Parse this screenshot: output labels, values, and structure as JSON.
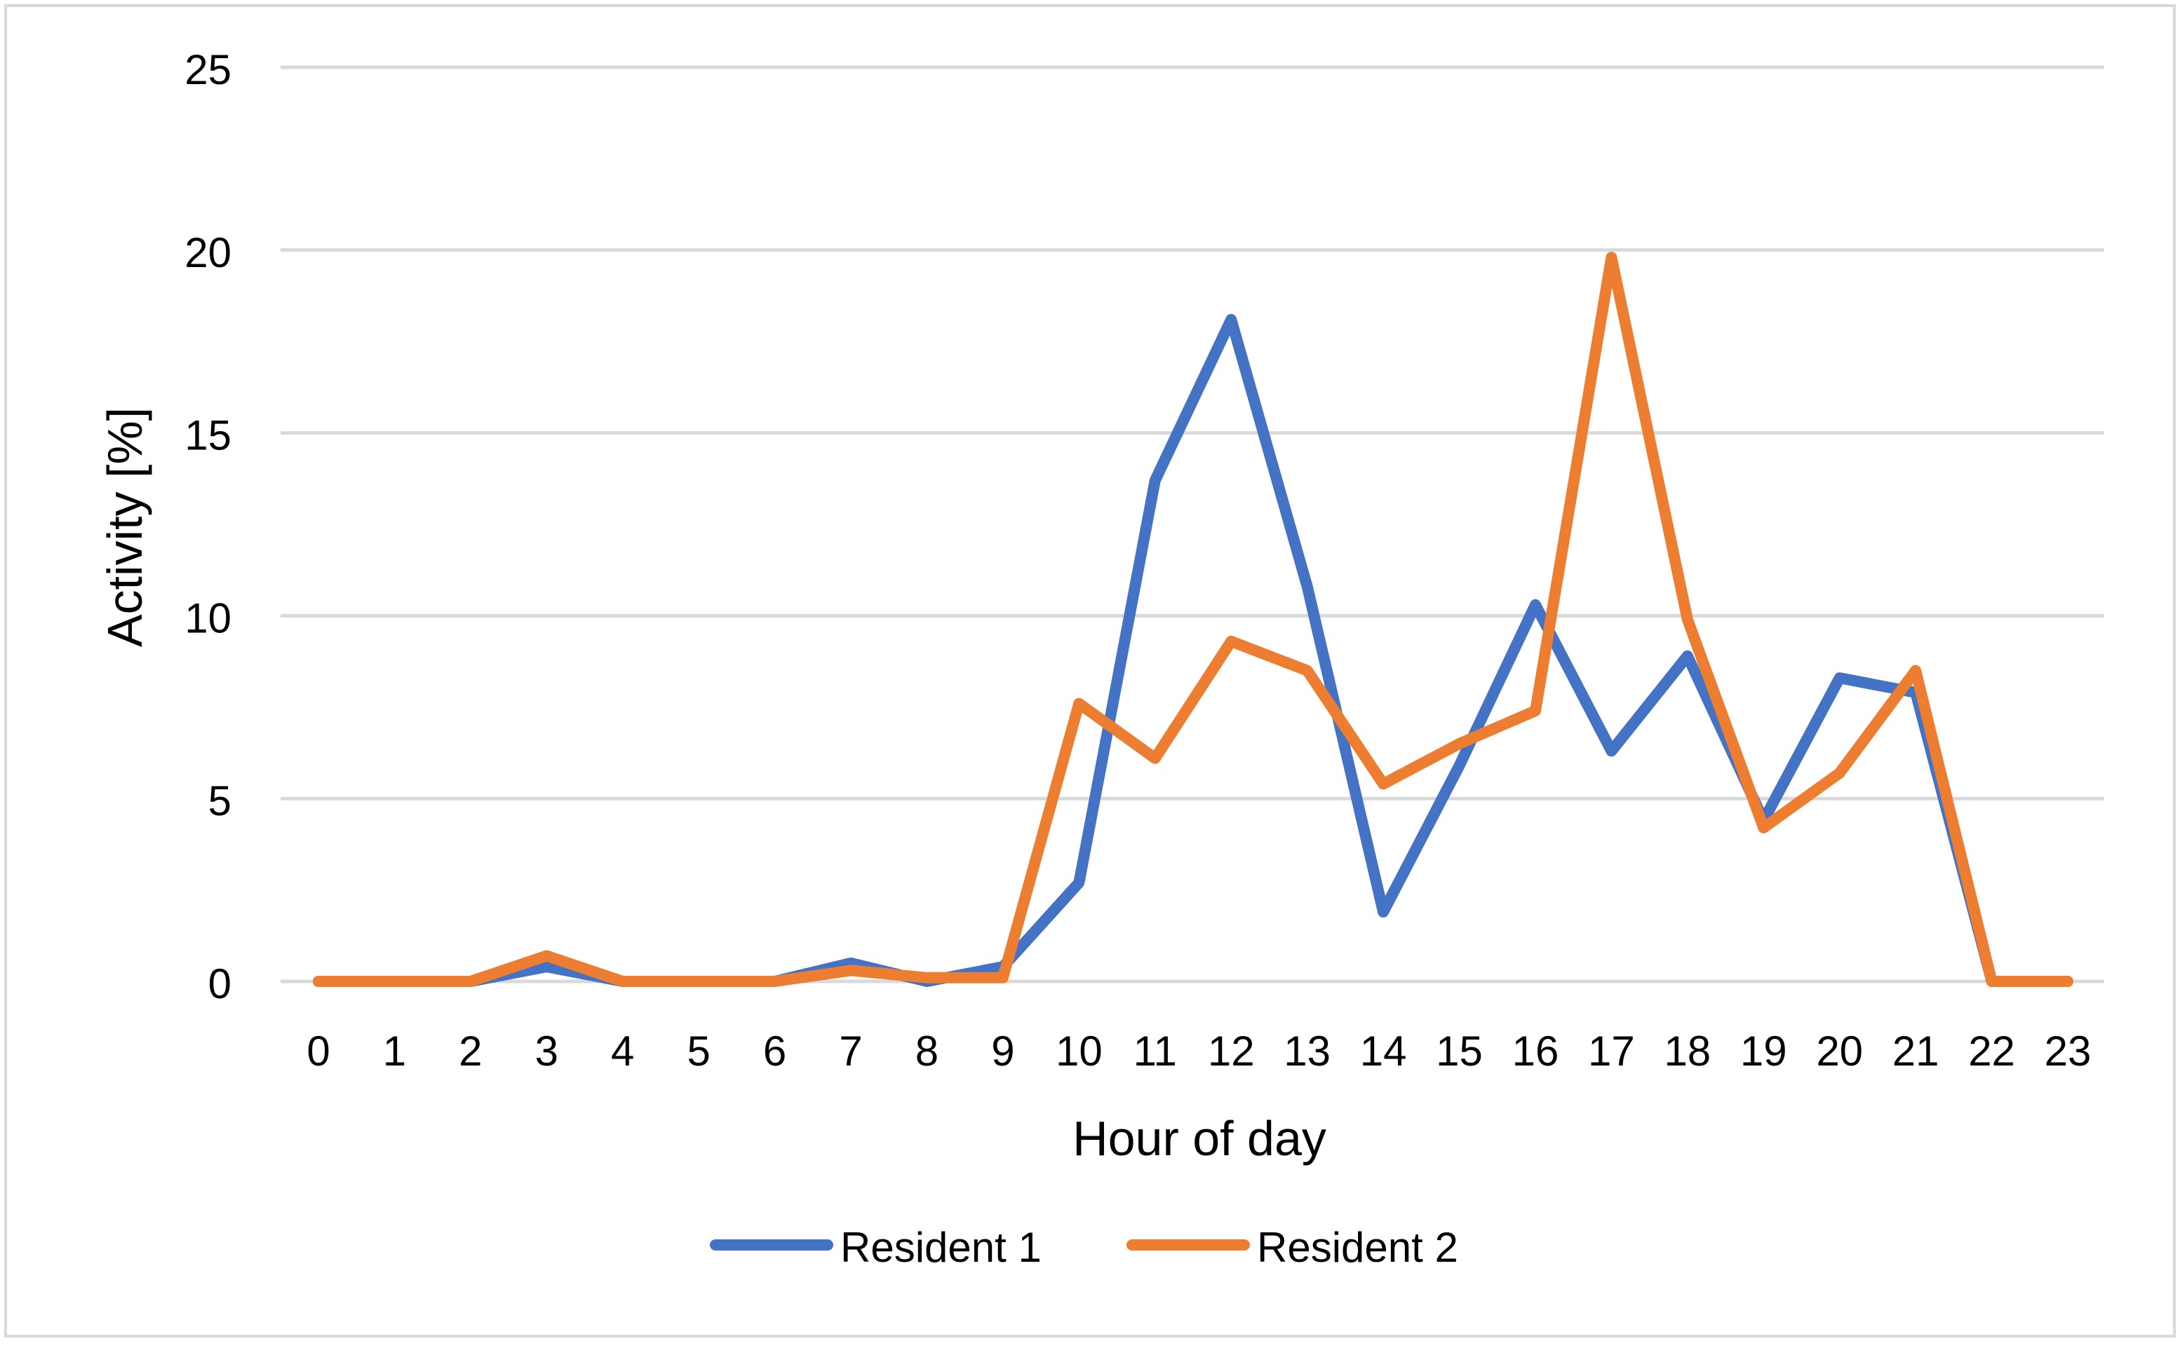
{
  "chart_data": {
    "type": "line",
    "title": "",
    "xlabel": "Hour of day",
    "ylabel": "Activity [%]",
    "categories": [
      "0",
      "1",
      "2",
      "3",
      "4",
      "5",
      "6",
      "7",
      "8",
      "9",
      "10",
      "11",
      "12",
      "13",
      "14",
      "15",
      "16",
      "17",
      "18",
      "19",
      "20",
      "21",
      "22",
      "23"
    ],
    "ylim": [
      0,
      25
    ],
    "yticks": [
      "0",
      "5",
      "10",
      "15",
      "20",
      "25"
    ],
    "grid": "horizontal",
    "legend_position": "bottom",
    "series": [
      {
        "name": "Resident 1",
        "color": "#4472C4",
        "values": [
          0,
          0,
          0,
          0.4,
          0,
          0,
          0,
          0.5,
          0,
          0.4,
          2.7,
          13.7,
          18.1,
          10.8,
          1.9,
          5.9,
          10.3,
          6.3,
          8.9,
          4.4,
          8.3,
          7.9,
          0,
          0
        ]
      },
      {
        "name": "Resident 2",
        "color": "#ED7D31",
        "values": [
          0,
          0,
          0,
          0.7,
          0,
          0,
          0,
          0.3,
          0.1,
          0.1,
          7.6,
          6.1,
          9.3,
          8.5,
          5.4,
          6.5,
          7.4,
          19.8,
          9.9,
          4.2,
          5.7,
          8.5,
          0,
          0
        ]
      }
    ],
    "colors": {
      "gridline": "#D9D9D9",
      "border": "#D9D9D9"
    }
  }
}
